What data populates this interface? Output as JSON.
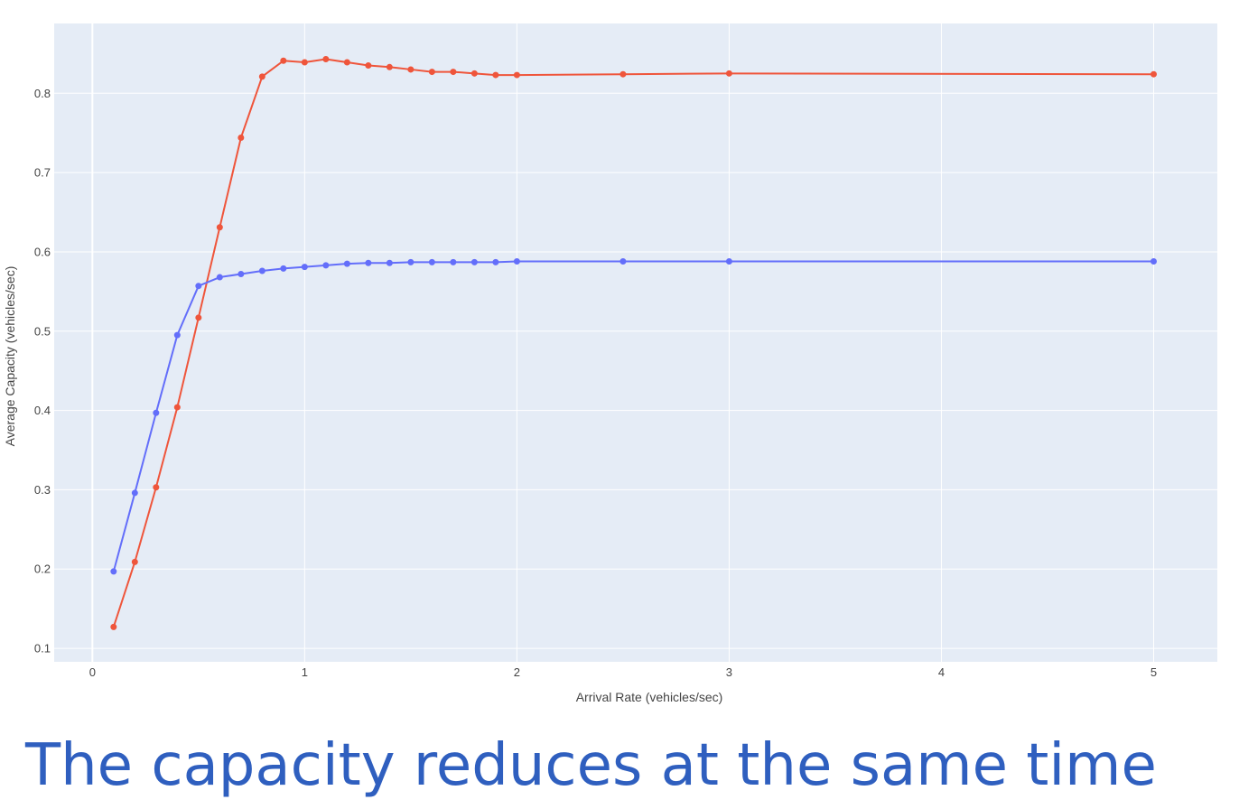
{
  "caption": "The capacity reduces at the same time",
  "colors": {
    "plot_bg": "#e5ecf6",
    "grid": "#ffffff",
    "series_blue": "#636efa",
    "series_red": "#ef553b",
    "caption": "#2f5fbf"
  },
  "chart_data": {
    "type": "line",
    "title": "",
    "xlabel": "Arrival Rate (vehicles/sec)",
    "ylabel": "Average Capacity (vehicles/sec)",
    "xlim": [
      -0.18,
      5.3
    ],
    "ylim": [
      0.083,
      0.888
    ],
    "x_ticks": [
      0,
      1,
      2,
      3,
      4,
      5
    ],
    "x_tick_labels": [
      "0",
      "1",
      "2",
      "3",
      "4",
      "5"
    ],
    "y_ticks": [
      0.1,
      0.2,
      0.3,
      0.4,
      0.5,
      0.6,
      0.7,
      0.8
    ],
    "y_tick_labels": [
      "0.1",
      "0.2",
      "0.3",
      "0.4",
      "0.5",
      "0.6",
      "0.7",
      "0.8"
    ],
    "grid": true,
    "legend": false,
    "x": [
      0.1,
      0.2,
      0.3,
      0.4,
      0.5,
      0.6,
      0.7,
      0.8,
      0.9,
      1.0,
      1.1,
      1.2,
      1.3,
      1.4,
      1.5,
      1.6,
      1.7,
      1.8,
      1.9,
      2.0,
      2.5,
      3.0,
      5.0
    ],
    "series": [
      {
        "color": "#636efa",
        "values": [
          0.197,
          0.296,
          0.397,
          0.495,
          0.557,
          0.568,
          0.572,
          0.576,
          0.579,
          0.581,
          0.583,
          0.585,
          0.586,
          0.586,
          0.587,
          0.587,
          0.587,
          0.587,
          0.587,
          0.588,
          0.588,
          0.588,
          0.588
        ]
      },
      {
        "color": "#ef553b",
        "values": [
          0.127,
          0.209,
          0.303,
          0.404,
          0.517,
          0.631,
          0.744,
          0.821,
          0.841,
          0.839,
          0.843,
          0.839,
          0.835,
          0.833,
          0.83,
          0.827,
          0.827,
          0.825,
          0.823,
          0.823,
          0.824,
          0.825,
          0.824
        ]
      }
    ]
  }
}
